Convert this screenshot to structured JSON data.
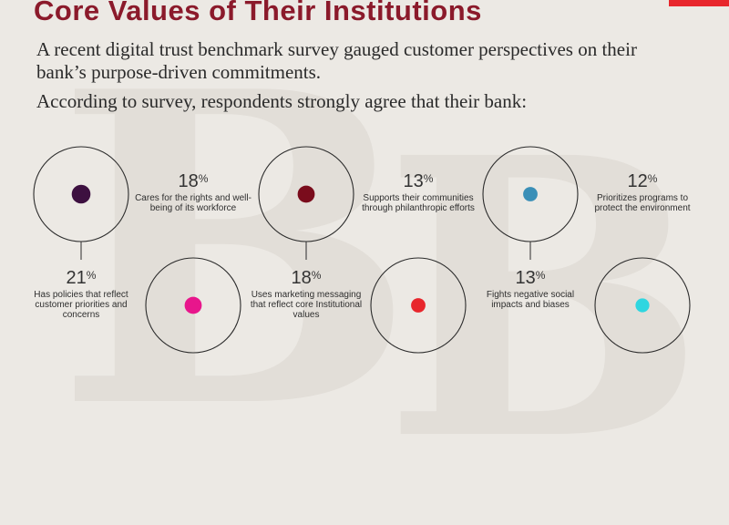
{
  "title": "Core Values of Their Institutions",
  "intro": "A recent digital trust benchmark survey gauged customer perspectives on their bank’s purpose-driven commitments.",
  "lead": "According to survey, respondents strongly agree that their bank:",
  "colors": {
    "background": "#ece9e4",
    "title": "#8b1a2b",
    "accent": "#e8262c",
    "ring": "#2b2b2b"
  },
  "chart_data": {
    "type": "bar",
    "unit": "%",
    "categories": [
      "Has policies that reflect customer priorities and concerns",
      "Cares for the rights and well-being of its workforce",
      "Uses marketing messaging that reflect core Institutional values",
      "Supports their communities through philanthropic efforts",
      "Fights negative social impacts and biases",
      "Prioritizes programs to protect the environment"
    ],
    "values": [
      21,
      18,
      18,
      13,
      13,
      12
    ],
    "colors": [
      "#3d1040",
      "#e8168c",
      "#7a0c1c",
      "#e8262c",
      "#3a8fb7",
      "#2fd6e0"
    ]
  }
}
